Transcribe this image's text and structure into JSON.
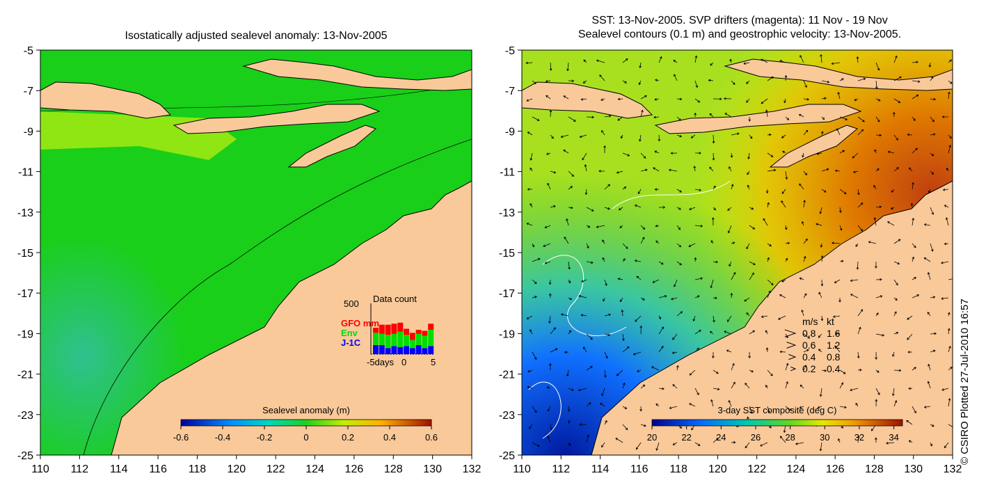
{
  "left_panel": {
    "title": "Isostatically adjusted sealevel anomaly: 13-Nov-2005",
    "colorbar": {
      "label": "Sealevel anomaly (m)",
      "ticks": [
        "-0.6",
        "-0.4",
        "-0.2",
        "0",
        "0.2",
        "0.4",
        "0.6"
      ],
      "range": [
        -0.6,
        0.6
      ]
    },
    "inset": {
      "title": "Data count",
      "ymax_label": "500",
      "legend": [
        {
          "label": "GFO mm",
          "color": "#ff0000"
        },
        {
          "label": "Env",
          "color": "#00dd00"
        },
        {
          "label": "J-1C",
          "color": "#0000ff"
        }
      ],
      "x_labels": [
        "-5days",
        "0",
        "5"
      ],
      "bars": [
        {
          "day": -5,
          "j1c": 90,
          "env": 120,
          "gfo": 50
        },
        {
          "day": -4,
          "j1c": 90,
          "env": 110,
          "gfo": 90
        },
        {
          "day": -3,
          "j1c": 60,
          "env": 130,
          "gfo": 100
        },
        {
          "day": -2,
          "j1c": 80,
          "env": 120,
          "gfo": 100
        },
        {
          "day": -1,
          "j1c": 70,
          "env": 150,
          "gfo": 90
        },
        {
          "day": 0,
          "j1c": 80,
          "env": 110,
          "gfo": 60
        },
        {
          "day": 1,
          "j1c": 60,
          "env": 80,
          "gfo": 70
        },
        {
          "day": 2,
          "j1c": 90,
          "env": 110,
          "gfo": 40
        },
        {
          "day": 3,
          "j1c": 60,
          "env": 120,
          "gfo": 50
        },
        {
          "day": 4,
          "j1c": 80,
          "env": 160,
          "gfo": 60
        }
      ]
    }
  },
  "right_panel": {
    "title_line1": "SST: 13-Nov-2005. SVP drifters (magenta): 11 Nov - 19 Nov",
    "title_line2": "Sealevel contours (0.1 m) and geostrophic velocity: 13-Nov-2005.",
    "colorbar": {
      "label": "3-day SST composite (deg C)",
      "ticks": [
        "20",
        "22",
        "24",
        "26",
        "28",
        "30",
        "32",
        "34"
      ],
      "range": [
        20,
        34.5
      ]
    },
    "velocity_legend": {
      "header_ms": "m/s",
      "header_kt": "kt",
      "rows": [
        {
          "ms": "0.8",
          "kt": "1.6"
        },
        {
          "ms": "0.6",
          "kt": "1.2"
        },
        {
          "ms": "0.4",
          "kt": "0.8"
        },
        {
          "ms": "0.2",
          "kt": "0.4"
        }
      ]
    }
  },
  "axes": {
    "x_ticks": [
      "110",
      "112",
      "114",
      "116",
      "118",
      "120",
      "122",
      "124",
      "126",
      "128",
      "130",
      "132"
    ],
    "y_ticks": [
      "-5",
      "-7",
      "-9",
      "-11",
      "-13",
      "-15",
      "-17",
      "-19",
      "-21",
      "-23",
      "-25"
    ],
    "lon_range": [
      110,
      132
    ],
    "lat_range": [
      -25,
      -5
    ]
  },
  "copyright": "© CSIRO Plotted 27-Jul-2010 16:57",
  "colors": {
    "land": "#f9c99a",
    "sla_background": "#19cf19",
    "coast": "#000000"
  }
}
